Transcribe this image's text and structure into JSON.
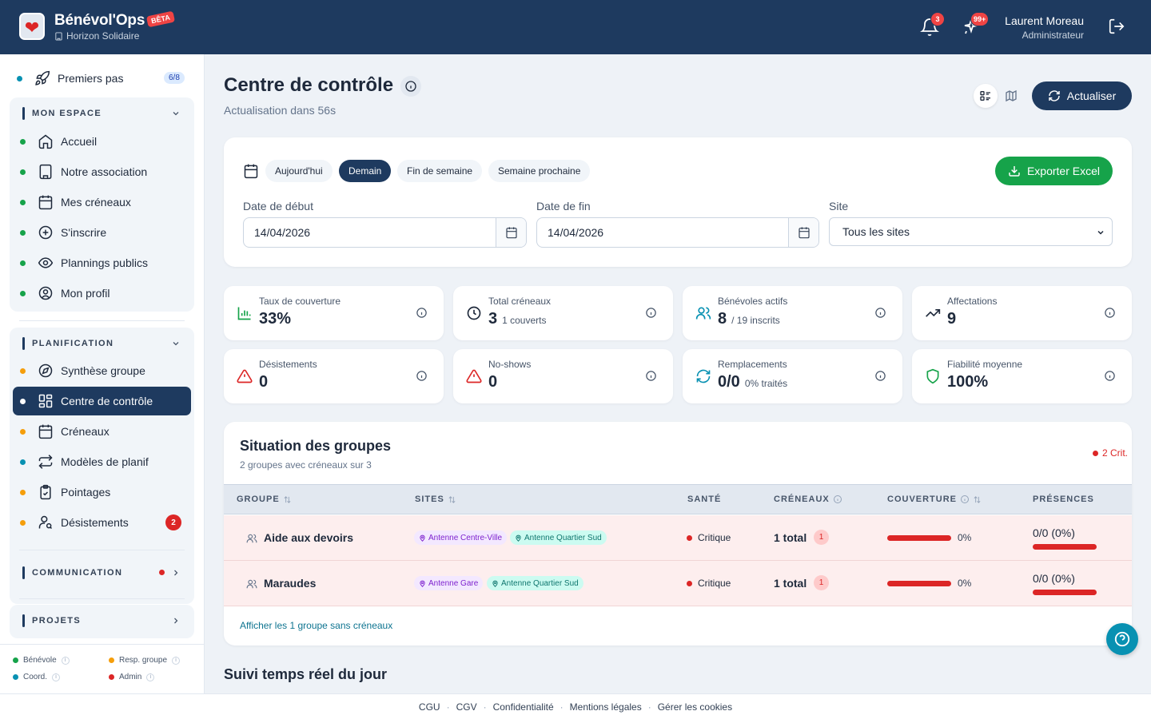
{
  "header": {
    "app_name": "Bénévol'Ops",
    "beta": "BÊTA",
    "org": "Horizon Solidaire",
    "notif_count": "3",
    "spark_count": "99+",
    "user_name": "Laurent Moreau",
    "user_role": "Administrateur"
  },
  "sidebar": {
    "getting_started": {
      "label": "Premiers pas",
      "badge": "6/8"
    },
    "mon_espace": {
      "title": "MON ESPACE",
      "items": [
        {
          "label": "Accueil",
          "icon": "home-icon"
        },
        {
          "label": "Notre association",
          "icon": "building-icon"
        },
        {
          "label": "Mes créneaux",
          "icon": "calendar-icon"
        },
        {
          "label": "S'inscrire",
          "icon": "plus-circle-icon"
        },
        {
          "label": "Plannings publics",
          "icon": "eye-icon"
        },
        {
          "label": "Mon profil",
          "icon": "user-circle-icon"
        }
      ]
    },
    "planification": {
      "title": "PLANIFICATION",
      "items": [
        {
          "label": "Synthèse groupe",
          "icon": "compass-icon"
        },
        {
          "label": "Centre de contrôle",
          "icon": "dashboard-icon"
        },
        {
          "label": "Créneaux",
          "icon": "calendar-icon"
        },
        {
          "label": "Modèles de planif",
          "icon": "repeat-icon"
        },
        {
          "label": "Pointages",
          "icon": "clipboard-icon"
        },
        {
          "label": "Désistements",
          "icon": "user-search-icon",
          "badge": "2"
        }
      ]
    },
    "communication": {
      "title": "COMMUNICATION"
    },
    "projets": {
      "title": "PROJETS"
    },
    "legend": {
      "benevole": "Bénévole",
      "resp": "Resp. groupe",
      "coord": "Coord.",
      "admin": "Admin"
    },
    "colors": {
      "benevole": "#16a34a",
      "resp": "#f59e0b",
      "coord": "#0891b2",
      "admin": "#dc2626"
    }
  },
  "main": {
    "title": "Centre de contrôle",
    "subtitle": "Actualisation dans 56s",
    "refresh_label": "Actualiser",
    "filters": {
      "chips": [
        "Aujourd'hui",
        "Demain",
        "Fin de semaine",
        "Semaine prochaine"
      ],
      "active_chip": "Demain",
      "export_label": "Exporter Excel",
      "start_label": "Date de début",
      "start_value": "14/04/2026",
      "end_label": "Date de fin",
      "end_value": "14/04/2026",
      "site_label": "Site",
      "site_value": "Tous les sites"
    },
    "stats": [
      {
        "label": "Taux de couverture",
        "value": "33%",
        "sub": "",
        "icon": "bar-chart-icon"
      },
      {
        "label": "Total créneaux",
        "value": "3",
        "sub": "1 couverts",
        "icon": "clock-icon"
      },
      {
        "label": "Bénévoles actifs",
        "value": "8",
        "sub": "/ 19 inscrits",
        "icon": "users-icon"
      },
      {
        "label": "Affectations",
        "value": "9",
        "sub": "",
        "icon": "trending-up-icon"
      },
      {
        "label": "Désistements",
        "value": "0",
        "sub": "",
        "icon": "warning-icon"
      },
      {
        "label": "No-shows",
        "value": "0",
        "sub": "",
        "icon": "warning-icon"
      },
      {
        "label": "Remplacements",
        "value": "0/0",
        "sub": "0% traités",
        "icon": "refresh-icon"
      },
      {
        "label": "Fiabilité moyenne",
        "value": "100%",
        "sub": "",
        "icon": "shield-icon"
      }
    ],
    "groups": {
      "title": "Situation des groupes",
      "subtitle": "2 groupes avec créneaux sur 3",
      "crit": "2 Crit.",
      "columns": [
        "GROUPE",
        "SITES",
        "SANTÉ",
        "CRÉNEAUX",
        "COUVERTURE",
        "PRÉSENCES"
      ],
      "rows": [
        {
          "name": "Aide aux devoirs",
          "sites": [
            "Antenne Centre-Ville",
            "Antenne Quartier Sud"
          ],
          "health": "Critique",
          "total": "1 total",
          "badge": "1",
          "coverage": "0%",
          "coverage_value": 0,
          "presence": "0/0 (0%)"
        },
        {
          "name": "Maraudes",
          "sites": [
            "Antenne Gare",
            "Antenne Quartier Sud"
          ],
          "health": "Critique",
          "total": "1 total",
          "badge": "1",
          "coverage": "0%",
          "coverage_value": 0,
          "presence": "0/0 (0%)"
        }
      ],
      "link": "Afficher les 1 groupe sans créneaux"
    },
    "realtime_title": "Suivi temps réel du jour"
  },
  "footer": [
    "CGU",
    "CGV",
    "Confidentialité",
    "Mentions légales",
    "Gérer les cookies"
  ]
}
